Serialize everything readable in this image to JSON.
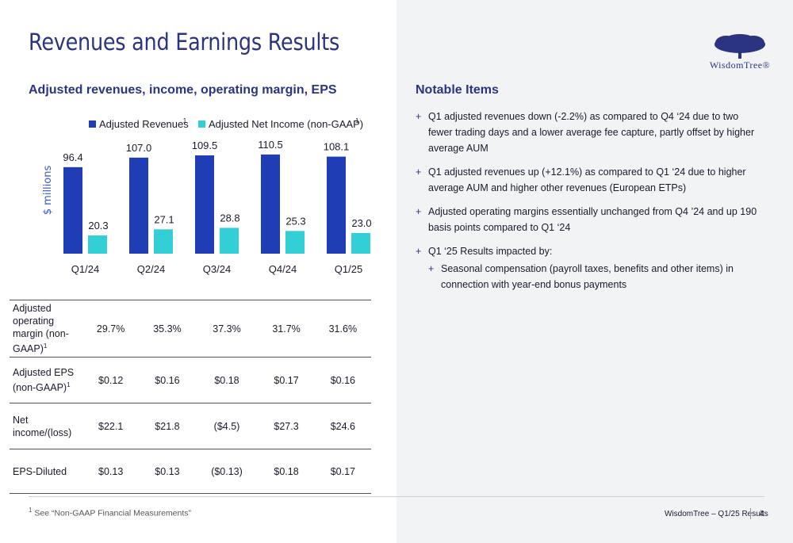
{
  "header": {
    "title": "Revenues and Earnings Results",
    "logo_text": "WisdomTree®"
  },
  "left": {
    "subtitle": "Adjusted revenues, income, operating margin, EPS"
  },
  "chart_data": {
    "type": "bar",
    "categories": [
      "Q1/24",
      "Q2/24",
      "Q3/24",
      "Q4/24",
      "Q1/25"
    ],
    "series": [
      {
        "name": "Adjusted Revenues",
        "footnote": "1",
        "color": "#1f3db5",
        "values": [
          96.4,
          107.0,
          109.5,
          110.5,
          108.1
        ],
        "labels": [
          "96.4",
          "107.0",
          "109.5",
          "110.5",
          "108.1"
        ]
      },
      {
        "name": "Adjusted Net Income (non-GAAP)",
        "footnote": "1",
        "color": "#33cfd6",
        "values": [
          20.3,
          27.1,
          28.8,
          25.3,
          23.0
        ],
        "labels": [
          "20.3",
          "27.1",
          "28.8",
          "25.3",
          "23.0"
        ]
      }
    ],
    "ylabel": "$ millions",
    "ylim": [
      -25,
      115
    ],
    "legend": "top",
    "grid": false
  },
  "metrics": {
    "rows": [
      {
        "label": "Adjusted operating margin (non-GAAP)",
        "footnote": "1",
        "values": [
          "29.7%",
          "35.3%",
          "37.3%",
          "31.7%",
          "31.6%"
        ]
      },
      {
        "label": "Adjusted EPS (non-GAAP)",
        "footnote": "1",
        "values": [
          "$0.12",
          "$0.16",
          "$0.18",
          "$0.17",
          "$0.16"
        ]
      },
      {
        "label": "Net income/(loss)",
        "footnote": "",
        "values": [
          "$22.1",
          "$21.8",
          "($4.5)",
          "$27.3",
          "$24.6"
        ]
      },
      {
        "label": "EPS-Diluted",
        "footnote": "",
        "values": [
          "$0.13",
          "$0.13",
          "($0.13)",
          "$0.18",
          "$0.17"
        ]
      }
    ]
  },
  "notable": {
    "title": "Notable Items",
    "items": [
      "Q1 adjusted revenues down (-2.2%) as compared to Q4 ‘24 due to two fewer trading days and a lower average fee capture, partly offset by higher average AUM",
      "Q1 adjusted revenues up (+12.1%) as compared to Q1 ‘24 due to higher average AUM and higher other revenues (European ETPs)",
      "Adjusted operating margins essentially unchanged from Q4 ’24 and up 190 basis points compared to Q1 ‘24",
      "Q1 ‘25 Results impacted by:"
    ],
    "sub_items": [
      "Seasonal compensation (payroll taxes, benefits and other items) in connection with year-end bonus payments"
    ]
  },
  "footer": {
    "footnote_marker": "1",
    "footnote": "See “Non-GAAP Financial Measurements”",
    "text": "WisdomTree – Q1/25 Results",
    "page": "4"
  }
}
